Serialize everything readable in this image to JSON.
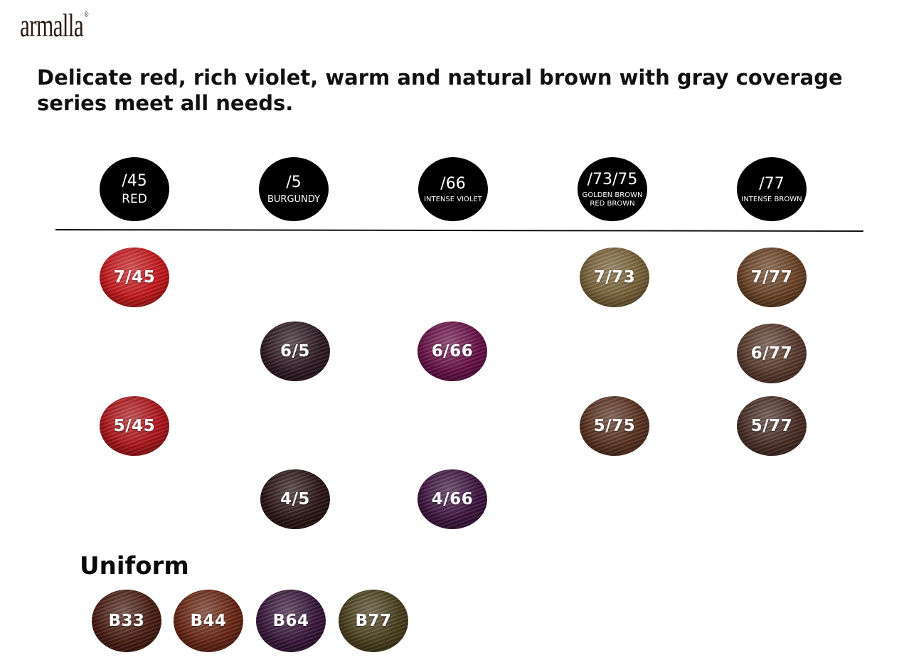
{
  "brand": {
    "logo_text": "armalla",
    "registered_mark": "®"
  },
  "headline": "Delicate red, rich violet, warm and natural brown with gray coverage series meet all needs.",
  "columns": [
    {
      "code": "/45",
      "name": "RED"
    },
    {
      "code": "/5",
      "name": "BURGUNDY"
    },
    {
      "code": "/66",
      "name": "INTENSE VIOLET"
    },
    {
      "code": "/73/75",
      "name": "GOLDEN BROWN\nRED BROWN"
    },
    {
      "code": "/77",
      "name": "INTENSE BROWN"
    }
  ],
  "swatches": [
    {
      "label": "7/45",
      "color": "#c8181c"
    },
    {
      "label": "5/45",
      "color": "#b0151a"
    },
    {
      "label": "6/5",
      "color": "#2e1a22"
    },
    {
      "label": "4/5",
      "color": "#2a1414"
    },
    {
      "label": "6/66",
      "color": "#6a1048"
    },
    {
      "label": "4/66",
      "color": "#3e1440"
    },
    {
      "label": "7/73",
      "color": "#7a6238"
    },
    {
      "label": "5/75",
      "color": "#5a3220"
    },
    {
      "label": "7/77",
      "color": "#6a4224"
    },
    {
      "label": "6/77",
      "color": "#5a3a2c"
    },
    {
      "label": "5/77",
      "color": "#4a2e26"
    }
  ],
  "uniform": {
    "title": "Uniform",
    "swatches": [
      {
        "label": "B33",
        "color": "#4a1c12"
      },
      {
        "label": "B44",
        "color": "#6a2614"
      },
      {
        "label": "B64",
        "color": "#38163a"
      },
      {
        "label": "B77",
        "color": "#4a3e1c"
      }
    ]
  }
}
